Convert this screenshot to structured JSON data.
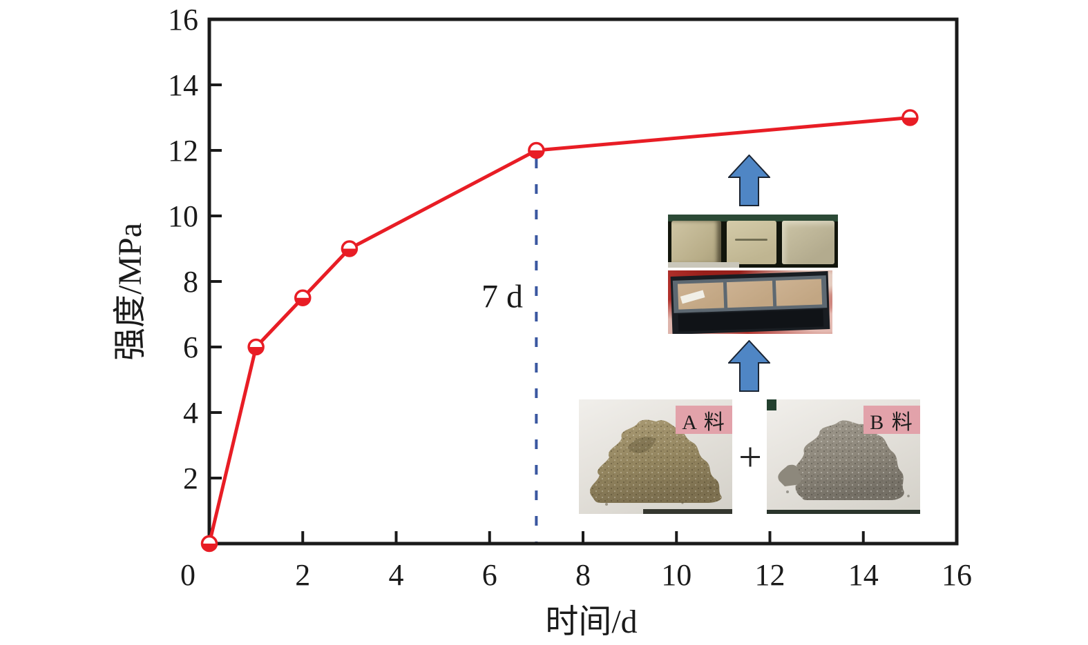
{
  "chart_data": {
    "type": "line",
    "title": "",
    "xlabel": "时间/d",
    "ylabel": "强度/MPa",
    "xlim": [
      0,
      16
    ],
    "ylim": [
      0,
      16
    ],
    "x_ticks": [
      0,
      2,
      4,
      6,
      8,
      10,
      12,
      14,
      16
    ],
    "y_ticks": [
      2,
      4,
      6,
      8,
      10,
      12,
      14,
      16
    ],
    "grid": false,
    "legend": "none",
    "series": [
      {
        "name": "strength-curve",
        "marker": "circle-bottom-half-filled",
        "color": "#e81d25",
        "points": [
          [
            0,
            0
          ],
          [
            1,
            6
          ],
          [
            2,
            7.5
          ],
          [
            3,
            9
          ],
          [
            7,
            12
          ],
          [
            15,
            13
          ]
        ]
      }
    ],
    "annotation": {
      "text": "7 d",
      "x": 7,
      "y_top": 12,
      "guide_style": "dashed",
      "guide_color": "#3a57a0"
    }
  },
  "insets": {
    "powder_a_label": "A 料",
    "powder_b_label": "B 料",
    "plus_sign": "+",
    "arrow_color": "#4f86c5",
    "arrow_border": "#1a2433",
    "label_bg": "#e2a2aa"
  },
  "colors": {
    "axis": "#1a1a1a",
    "line": "#e81d25",
    "guide": "#3a57a0"
  }
}
